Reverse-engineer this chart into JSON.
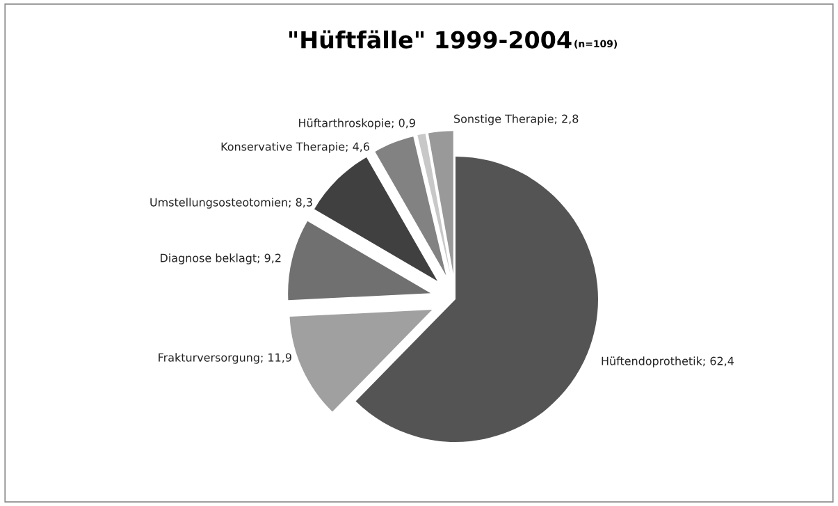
{
  "chart_data": {
    "type": "pie",
    "title": "\"Hüftfälle\" 1999-2004",
    "subtitle": "(n=109)",
    "categories": [
      "Hüftendoprothetik",
      "Frakturversorgung",
      "Diagnose beklagt",
      "Umstellungsosteotomien",
      "Konservative Therapie",
      "Hüftarthroskopie",
      "Sonstige Therapie"
    ],
    "values": [
      62.4,
      11.9,
      9.2,
      8.3,
      4.6,
      0.9,
      2.8
    ],
    "value_labels": [
      "62,4",
      "11,9",
      "9,2",
      "8,3",
      "4,6",
      "0,9",
      "2,8"
    ],
    "colors": [
      "#545454",
      "#a0a0a0",
      "#707070",
      "#404040",
      "#828282",
      "#c8c8c8",
      "#999999"
    ],
    "legend": false
  }
}
